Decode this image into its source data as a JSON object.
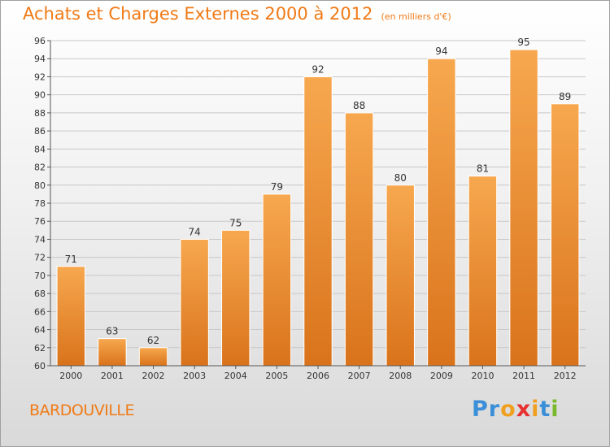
{
  "header": {
    "title": "Achats et Charges Externes 2000 à 2012",
    "unit": "(en milliers d'€)"
  },
  "footer": {
    "town": "BARDOUVILLE",
    "logo": [
      "P",
      "r",
      "o",
      "x",
      "i",
      "t",
      "i"
    ]
  },
  "colors": {
    "bar_top": "#f7a84f",
    "bar_bottom": "#d9731b",
    "accent": "#f07a16"
  },
  "chart_data": {
    "type": "bar",
    "title": "Achats et Charges Externes 2000 à 2012",
    "subtitle": "(en milliers d'€)",
    "xlabel": "",
    "ylabel": "",
    "categories": [
      "2000",
      "2001",
      "2002",
      "2003",
      "2004",
      "2005",
      "2006",
      "2007",
      "2008",
      "2009",
      "2010",
      "2011",
      "2012"
    ],
    "values": [
      71,
      63,
      62,
      74,
      75,
      79,
      92,
      88,
      80,
      94,
      81,
      95,
      89
    ],
    "ylim": [
      60,
      96
    ],
    "yticks": [
      60,
      62,
      64,
      66,
      68,
      70,
      72,
      74,
      76,
      78,
      80,
      82,
      84,
      86,
      88,
      90,
      92,
      94,
      96
    ],
    "grid": true,
    "legend": "none"
  }
}
